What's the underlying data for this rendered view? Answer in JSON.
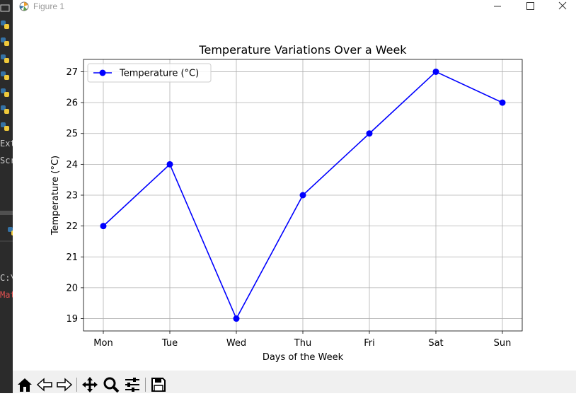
{
  "window": {
    "title": "Figure 1",
    "controls": [
      "minimize",
      "maximize",
      "close"
    ]
  },
  "background_ide": {
    "texts": [
      "Ext",
      "Scr",
      "C:\\",
      "Mat"
    ],
    "colors": {
      "bg": "#2b2b2b",
      "text": "#cccccc",
      "error_text": "#e05050"
    }
  },
  "toolbar": {
    "buttons": [
      {
        "name": "home-icon",
        "action": "home"
      },
      {
        "name": "back-icon",
        "action": "back"
      },
      {
        "name": "forward-icon",
        "action": "forward"
      },
      {
        "name": "pan-icon",
        "action": "pan"
      },
      {
        "name": "zoom-icon",
        "action": "zoom"
      },
      {
        "name": "configure-subplots-icon",
        "action": "configure"
      },
      {
        "name": "save-icon",
        "action": "save"
      }
    ]
  },
  "chart_data": {
    "type": "line",
    "title": "Temperature Variations Over a Week",
    "xlabel": "Days of the Week",
    "ylabel": "Temperature (°C)",
    "categories": [
      "Mon",
      "Tue",
      "Wed",
      "Thu",
      "Fri",
      "Sat",
      "Sun"
    ],
    "series": [
      {
        "name": "Temperature (°C)",
        "values": [
          22,
          24,
          19,
          23,
          25,
          27,
          26
        ],
        "color": "#0000ff",
        "marker": "circle"
      }
    ],
    "yticks": [
      19,
      20,
      21,
      22,
      23,
      24,
      25,
      26,
      27
    ],
    "ylim": [
      18.6,
      27.4
    ],
    "grid": true,
    "legend": "top-left"
  }
}
